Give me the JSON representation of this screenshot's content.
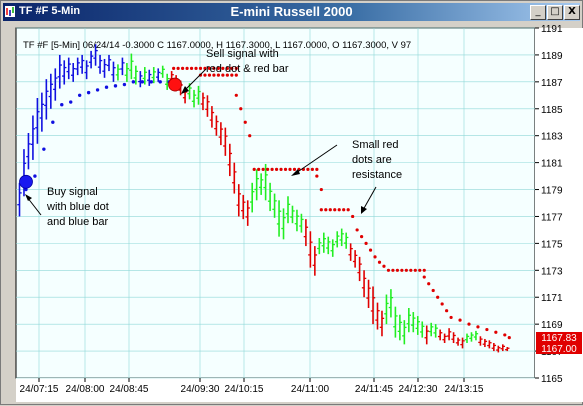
{
  "window": {
    "title_left": "TF #F 5-Min",
    "title_center": "E-mini Russell 2000",
    "min_glyph": "_",
    "max_glyph": "□",
    "close_glyph": "X"
  },
  "info_line": "TF #F [5-Min] 06/24/14  -0.3000 C 1167.0000, H 1167.3000, L 1167.0000, O 1167.3000, V 97",
  "price_boxes": {
    "last_top": "1167.83",
    "last_bottom": "1167.00"
  },
  "annotations": {
    "buy": [
      "Buy signal",
      "with blue dot",
      "and blue bar"
    ],
    "sell": [
      "Sell signal with",
      "red dot & red bar"
    ],
    "resistance": [
      "Small red",
      "dots are",
      "resistance"
    ]
  },
  "colors": {
    "background": "#f5ffff",
    "grid": "#8fd8d8",
    "blue": "#1010e0",
    "green": "#22ee22",
    "red": "#e00000"
  },
  "chart_data": {
    "type": "ohlc",
    "ylim": [
      1165,
      1191
    ],
    "grid": true,
    "y_ticks": [
      1165,
      1167,
      1169,
      1171,
      1173,
      1175,
      1177,
      1179,
      1181,
      1183,
      1185,
      1187,
      1189,
      1191
    ],
    "x_ticks": [
      "24/07:15",
      "24/08:00",
      "24/08:45",
      "24/09:30",
      "24/10:15",
      "24/11:00",
      "24/11:45",
      "24/12:30",
      "24/13:15"
    ],
    "bar_count": 110,
    "bars": [
      [
        1179.5,
        1177.0,
        "blue"
      ],
      [
        1182.0,
        1178.5,
        "blue"
      ],
      [
        1183.2,
        1180.5,
        "blue"
      ],
      [
        1184.5,
        1181.2,
        "blue"
      ],
      [
        1185.8,
        1182.4,
        "blue"
      ],
      [
        1186.2,
        1183.3,
        "blue"
      ],
      [
        1187.2,
        1184.2,
        "blue"
      ],
      [
        1187.6,
        1185.0,
        "blue"
      ],
      [
        1188.0,
        1185.6,
        "blue"
      ],
      [
        1189.0,
        1186.5,
        "blue"
      ],
      [
        1188.6,
        1186.8,
        "blue"
      ],
      [
        1188.8,
        1187.2,
        "blue"
      ],
      [
        1188.4,
        1187.0,
        "blue"
      ],
      [
        1188.8,
        1187.5,
        "blue"
      ],
      [
        1189.0,
        1187.6,
        "blue"
      ],
      [
        1188.6,
        1187.2,
        "blue"
      ],
      [
        1189.3,
        1188.0,
        "blue"
      ],
      [
        1189.8,
        1188.2,
        "blue"
      ],
      [
        1189.0,
        1187.6,
        "blue"
      ],
      [
        1188.7,
        1187.3,
        "blue"
      ],
      [
        1189.0,
        1187.8,
        "blue"
      ],
      [
        1188.5,
        1187.0,
        "blue"
      ],
      [
        1188.3,
        1187.1,
        "green"
      ],
      [
        1188.8,
        1187.5,
        "blue"
      ],
      [
        1188.4,
        1187.0,
        "green"
      ],
      [
        1189.1,
        1187.2,
        "green"
      ],
      [
        1188.2,
        1186.8,
        "green"
      ],
      [
        1187.8,
        1186.6,
        "blue"
      ],
      [
        1188.1,
        1186.8,
        "green"
      ],
      [
        1187.9,
        1186.7,
        "blue"
      ],
      [
        1188.1,
        1186.9,
        "green"
      ],
      [
        1188.0,
        1187.0,
        "blue"
      ],
      [
        1188.2,
        1187.3,
        "green"
      ],
      [
        1187.6,
        1186.4,
        "green"
      ],
      [
        1187.8,
        1186.9,
        "red"
      ],
      [
        1187.5,
        1186.3,
        "red"
      ],
      [
        1187.1,
        1186.0,
        "red"
      ],
      [
        1186.6,
        1185.4,
        "red"
      ],
      [
        1186.9,
        1185.7,
        "green"
      ],
      [
        1186.4,
        1185.1,
        "green"
      ],
      [
        1186.7,
        1185.3,
        "green"
      ],
      [
        1186.2,
        1184.9,
        "red"
      ],
      [
        1186.0,
        1184.4,
        "red"
      ],
      [
        1185.2,
        1183.6,
        "red"
      ],
      [
        1184.5,
        1183.0,
        "red"
      ],
      [
        1184.0,
        1182.3,
        "red"
      ],
      [
        1183.6,
        1181.5,
        "red"
      ],
      [
        1182.4,
        1180.0,
        "red"
      ],
      [
        1181.0,
        1178.7,
        "red"
      ],
      [
        1179.4,
        1177.0,
        "red"
      ],
      [
        1178.6,
        1176.8,
        "red"
      ],
      [
        1178.2,
        1176.3,
        "red"
      ],
      [
        1179.5,
        1177.3,
        "green"
      ],
      [
        1180.5,
        1178.2,
        "green"
      ],
      [
        1180.2,
        1178.6,
        "green"
      ],
      [
        1180.9,
        1178.2,
        "green"
      ],
      [
        1179.5,
        1177.4,
        "green"
      ],
      [
        1178.7,
        1176.9,
        "green"
      ],
      [
        1178.2,
        1175.5,
        "green"
      ],
      [
        1177.6,
        1175.3,
        "green"
      ],
      [
        1178.5,
        1176.5,
        "green"
      ],
      [
        1177.8,
        1176.5,
        "green"
      ],
      [
        1177.5,
        1175.9,
        "green"
      ],
      [
        1177.2,
        1175.8,
        "green"
      ],
      [
        1176.8,
        1174.8,
        "red"
      ],
      [
        1175.9,
        1173.2,
        "red"
      ],
      [
        1174.8,
        1172.6,
        "red"
      ],
      [
        1175.4,
        1174.2,
        "green"
      ],
      [
        1175.8,
        1174.3,
        "green"
      ],
      [
        1175.5,
        1174.2,
        "green"
      ],
      [
        1175.3,
        1174.0,
        "green"
      ],
      [
        1175.9,
        1174.7,
        "green"
      ],
      [
        1176.1,
        1174.8,
        "green"
      ],
      [
        1175.8,
        1174.6,
        "green"
      ],
      [
        1175.0,
        1173.7,
        "red"
      ],
      [
        1174.5,
        1173.2,
        "red"
      ],
      [
        1174.0,
        1172.2,
        "red"
      ],
      [
        1173.0,
        1171.0,
        "red"
      ],
      [
        1172.3,
        1170.2,
        "red"
      ],
      [
        1171.8,
        1169.0,
        "red"
      ],
      [
        1170.6,
        1168.6,
        "red"
      ],
      [
        1170.0,
        1168.1,
        "red"
      ],
      [
        1171.2,
        1169.0,
        "green"
      ],
      [
        1171.6,
        1169.5,
        "green"
      ],
      [
        1170.3,
        1168.0,
        "green"
      ],
      [
        1169.7,
        1167.8,
        "green"
      ],
      [
        1169.3,
        1167.5,
        "green"
      ],
      [
        1170.2,
        1168.4,
        "green"
      ],
      [
        1169.9,
        1168.4,
        "green"
      ],
      [
        1169.6,
        1168.2,
        "green"
      ],
      [
        1169.2,
        1168.0,
        "green"
      ],
      [
        1168.9,
        1167.5,
        "red"
      ],
      [
        1169.1,
        1168.1,
        "green"
      ],
      [
        1169.0,
        1168.0,
        "green"
      ],
      [
        1168.6,
        1167.8,
        "red"
      ],
      [
        1168.3,
        1167.6,
        "red"
      ],
      [
        1168.7,
        1167.8,
        "red"
      ],
      [
        1168.4,
        1167.6,
        "red"
      ],
      [
        1168.0,
        1167.4,
        "red"
      ],
      [
        1168.0,
        1167.2,
        "red"
      ],
      [
        1168.3,
        1167.6,
        "green"
      ],
      [
        1168.4,
        1167.7,
        "green"
      ],
      [
        1168.5,
        1167.8,
        "green"
      ],
      [
        1168.1,
        1167.4,
        "red"
      ],
      [
        1167.9,
        1167.3,
        "red"
      ],
      [
        1167.8,
        1167.2,
        "red"
      ],
      [
        1167.6,
        1167.0,
        "red"
      ],
      [
        1167.4,
        1166.9,
        "red"
      ],
      [
        1167.5,
        1167.0,
        "red"
      ],
      [
        1167.3,
        1167.0,
        "red"
      ]
    ],
    "blue_dots": [
      [
        1,
        1179.0
      ],
      [
        3,
        1180.0
      ],
      [
        5,
        1182.0
      ],
      [
        7,
        1184.0
      ],
      [
        9,
        1185.3
      ],
      [
        11,
        1185.5
      ],
      [
        13,
        1186.0
      ],
      [
        15,
        1186.2
      ],
      [
        17,
        1186.4
      ],
      [
        19,
        1186.6
      ],
      [
        21,
        1186.7
      ],
      [
        23,
        1186.8
      ],
      [
        25,
        1187.0
      ],
      [
        27,
        1187.0
      ],
      [
        29,
        1187.0
      ],
      [
        31,
        1187.0
      ],
      [
        33,
        1187.0
      ]
    ],
    "red_dot_segments": [
      {
        "from": 34,
        "to": 48,
        "y": 1188.0
      },
      {
        "from": 40,
        "to": 48,
        "y": 1187.5
      },
      {
        "from": 52,
        "to": 66,
        "y": 1180.5
      },
      {
        "from": 67,
        "to": 73,
        "y": 1177.5
      },
      {
        "from": 82,
        "to": 90,
        "y": 1173.0
      }
    ],
    "red_dot_diag": [
      [
        48,
        1186.0
      ],
      [
        49,
        1185.0
      ],
      [
        50,
        1184.0
      ],
      [
        51,
        1183.0
      ],
      [
        66,
        1180.0
      ],
      [
        67,
        1179.0
      ],
      [
        74,
        1177.0
      ],
      [
        75,
        1176.0
      ],
      [
        76,
        1175.5
      ],
      [
        77,
        1175.0
      ],
      [
        78,
        1174.5
      ],
      [
        79,
        1174.0
      ],
      [
        80,
        1173.6
      ],
      [
        81,
        1173.3
      ],
      [
        90,
        1172.5
      ],
      [
        91,
        1172.0
      ],
      [
        92,
        1171.5
      ],
      [
        93,
        1171.0
      ],
      [
        94,
        1170.5
      ],
      [
        95,
        1170.0
      ],
      [
        96,
        1169.5
      ],
      [
        98,
        1169.3
      ],
      [
        100,
        1169.0
      ],
      [
        102,
        1168.8
      ],
      [
        104,
        1168.6
      ],
      [
        106,
        1168.4
      ],
      [
        108,
        1168.2
      ],
      [
        109,
        1168.0
      ]
    ],
    "buy_signal": {
      "bar": 0,
      "value": 1179.5
    },
    "sell_signal": {
      "bar": 34,
      "value": 1186.8
    }
  }
}
